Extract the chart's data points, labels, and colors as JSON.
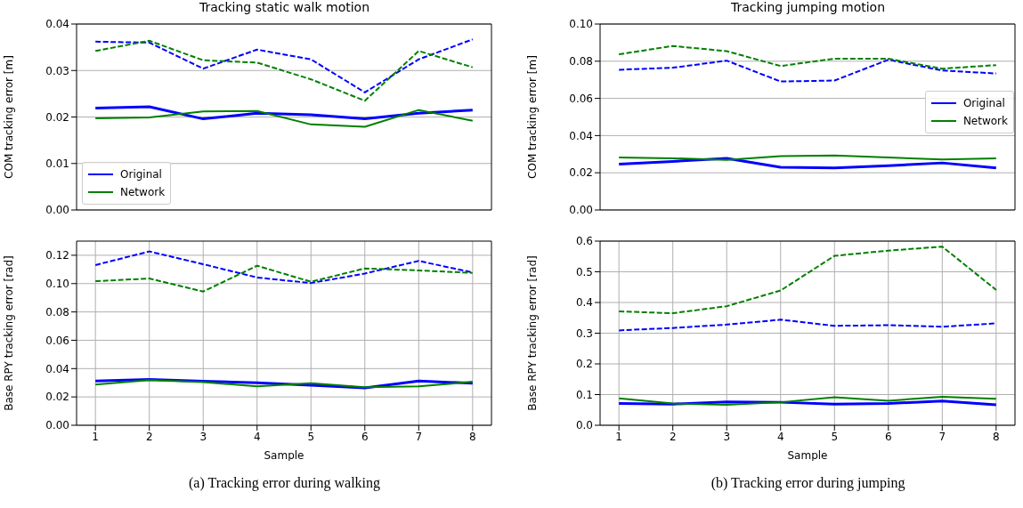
{
  "chart_data": [
    {
      "type": "line",
      "title": "Tracking static walk motion",
      "ylabel": "COM tracking error [m]",
      "x": [
        1,
        2,
        3,
        4,
        5,
        6,
        7,
        8
      ],
      "xlim": [
        0.65,
        8.35
      ],
      "xticks": [
        1,
        2,
        3,
        4,
        5,
        6,
        7,
        8
      ],
      "ylim": [
        0,
        0.04
      ],
      "yticks": [
        {
          "value": 0,
          "label": "0.00"
        },
        {
          "value": 0.01,
          "label": "0.01"
        },
        {
          "value": 0.02,
          "label": "0.02"
        },
        {
          "value": 0.03,
          "label": "0.03"
        },
        {
          "value": 0.04,
          "label": "0.04"
        }
      ],
      "tick_labels": "y",
      "grid": true,
      "legend": "bottom left",
      "marker": "none",
      "series": [
        {
          "name": "Original",
          "color": "#0000ff",
          "line_style": "solid",
          "values": [
            0.0219,
            0.0222,
            0.0196,
            0.0208,
            0.0205,
            0.0196,
            0.0208,
            0.0215
          ]
        },
        {
          "name": "Network",
          "color": "#008000",
          "line_style": "solid",
          "values": [
            0.0197,
            0.0199,
            0.0212,
            0.0213,
            0.0184,
            0.0179,
            0.0215,
            0.0192
          ]
        },
        {
          "color": "#0000ff",
          "line_style": "dashed",
          "values": [
            0.0362,
            0.036,
            0.0304,
            0.0345,
            0.0324,
            0.0253,
            0.0324,
            0.0367
          ]
        },
        {
          "color": "#008000",
          "line_style": "dashed",
          "values": [
            0.0342,
            0.0364,
            0.0322,
            0.0317,
            0.0281,
            0.0235,
            0.0342,
            0.0307
          ]
        }
      ]
    },
    {
      "type": "line",
      "title": "Tracking jumping motion",
      "ylabel": "COM tracking error [m]",
      "x": [
        1,
        2,
        3,
        4,
        5,
        6,
        7,
        8
      ],
      "xlim": [
        0.65,
        8.35
      ],
      "xticks": [
        1,
        2,
        3,
        4,
        5,
        6,
        7,
        8
      ],
      "ylim": [
        0,
        0.1
      ],
      "yticks": [
        {
          "value": 0,
          "label": "0.00"
        },
        {
          "value": 0.02,
          "label": "0.02"
        },
        {
          "value": 0.04,
          "label": "0.04"
        },
        {
          "value": 0.06,
          "label": "0.06"
        },
        {
          "value": 0.08,
          "label": "0.08"
        },
        {
          "value": 0.1,
          "label": "0.10"
        }
      ],
      "tick_labels": "y",
      "grid": true,
      "legend": "right",
      "marker": "none",
      "series": [
        {
          "name": "Original",
          "color": "#0000ff",
          "line_style": "solid",
          "values": [
            0.0246,
            0.0261,
            0.0278,
            0.023,
            0.0226,
            0.0238,
            0.0253,
            0.0226
          ]
        },
        {
          "name": "Network",
          "color": "#008000",
          "line_style": "solid",
          "values": [
            0.0282,
            0.0278,
            0.0269,
            0.029,
            0.0293,
            0.0282,
            0.0272,
            0.0277
          ]
        },
        {
          "color": "#0000ff",
          "line_style": "dashed",
          "values": [
            0.0754,
            0.0765,
            0.0803,
            0.0691,
            0.0696,
            0.0808,
            0.075,
            0.0734
          ]
        },
        {
          "color": "#008000",
          "line_style": "dashed",
          "values": [
            0.0837,
            0.0882,
            0.0854,
            0.0774,
            0.0814,
            0.0813,
            0.076,
            0.0779
          ]
        }
      ]
    },
    {
      "type": "line",
      "xlabel": "Sample",
      "ylabel": "Base RPY tracking error [rad]",
      "x": [
        1,
        2,
        3,
        4,
        5,
        6,
        7,
        8
      ],
      "xlim": [
        0.65,
        8.35
      ],
      "xticks": [
        1,
        2,
        3,
        4,
        5,
        6,
        7,
        8
      ],
      "ylim": [
        0,
        0.13
      ],
      "yticks": [
        {
          "value": 0,
          "label": "0.00"
        },
        {
          "value": 0.02,
          "label": "0.02"
        },
        {
          "value": 0.04,
          "label": "0.04"
        },
        {
          "value": 0.06,
          "label": "0.06"
        },
        {
          "value": 0.08,
          "label": "0.08"
        },
        {
          "value": 0.1,
          "label": "0.10"
        },
        {
          "value": 0.12,
          "label": "0.12"
        }
      ],
      "grid": true,
      "marker": "none",
      "annotations": [
        "(a) Tracking error during walking"
      ],
      "series": [
        {
          "color": "#0000ff",
          "line_style": "solid",
          "values": [
            0.0313,
            0.0323,
            0.0311,
            0.03,
            0.0283,
            0.0264,
            0.0313,
            0.0296
          ]
        },
        {
          "color": "#008000",
          "line_style": "solid",
          "values": [
            0.0288,
            0.0319,
            0.0305,
            0.0274,
            0.0296,
            0.0268,
            0.0274,
            0.0307
          ]
        },
        {
          "color": "#0000ff",
          "line_style": "dashed",
          "values": [
            0.1131,
            0.1227,
            0.1137,
            0.1043,
            0.1004,
            0.1071,
            0.116,
            0.1079
          ]
        },
        {
          "color": "#008000",
          "line_style": "dashed",
          "values": [
            0.1017,
            0.1036,
            0.0944,
            0.1126,
            0.1013,
            0.1107,
            0.1093,
            0.1076
          ]
        }
      ]
    },
    {
      "type": "line",
      "xlabel": "Sample",
      "ylabel": "Base RPY tracking error [rad]",
      "x": [
        1,
        2,
        3,
        4,
        5,
        6,
        7,
        8
      ],
      "xlim": [
        0.65,
        8.35
      ],
      "xticks": [
        1,
        2,
        3,
        4,
        5,
        6,
        7,
        8
      ],
      "ylim": [
        0,
        0.6
      ],
      "yticks": [
        {
          "value": 0,
          "label": "0.0"
        },
        {
          "value": 0.1,
          "label": "0.1"
        },
        {
          "value": 0.2,
          "label": "0.2"
        },
        {
          "value": 0.3,
          "label": "0.3"
        },
        {
          "value": 0.4,
          "label": "0.4"
        },
        {
          "value": 0.5,
          "label": "0.5"
        },
        {
          "value": 0.6,
          "label": "0.6"
        }
      ],
      "grid": true,
      "marker": "none",
      "annotations": [
        "(b) Tracking error during jumping"
      ],
      "series": [
        {
          "color": "#0000ff",
          "line_style": "solid",
          "values": [
            0.071,
            0.069,
            0.076,
            0.075,
            0.069,
            0.071,
            0.079,
            0.067
          ]
        },
        {
          "color": "#008000",
          "line_style": "solid",
          "values": [
            0.088,
            0.071,
            0.067,
            0.075,
            0.091,
            0.08,
            0.093,
            0.086
          ]
        },
        {
          "color": "#0000ff",
          "line_style": "dashed",
          "values": [
            0.309,
            0.317,
            0.328,
            0.344,
            0.324,
            0.326,
            0.321,
            0.332
          ]
        },
        {
          "color": "#008000",
          "line_style": "dashed",
          "values": [
            0.371,
            0.365,
            0.388,
            0.439,
            0.552,
            0.569,
            0.582,
            0.441
          ]
        }
      ]
    }
  ]
}
